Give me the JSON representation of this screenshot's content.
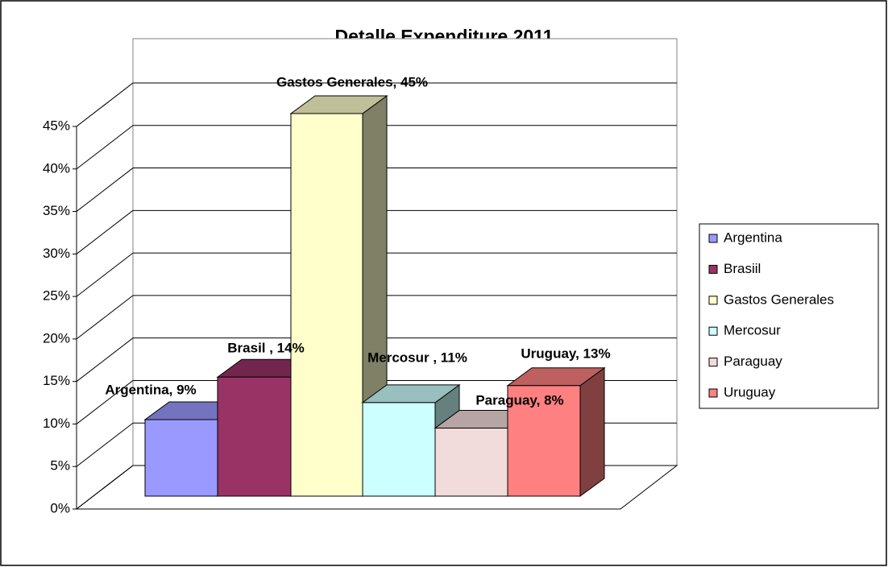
{
  "chart_data": {
    "type": "bar3d",
    "title": "Detalle Expenditure 2011",
    "series": [
      {
        "name": "Argentina",
        "color": "#9999ff",
        "values": [
          9
        ],
        "value_labels": [
          "Argentina, 9%"
        ]
      },
      {
        "name": "Brasiil",
        "color": "#993366",
        "values": [
          14
        ],
        "value_labels": [
          "Brasil , 14%"
        ]
      },
      {
        "name": "Gastos Generales",
        "color": "#ffffcc",
        "values": [
          45
        ],
        "value_labels": [
          "Gastos Generales, 45%"
        ]
      },
      {
        "name": "Mercosur",
        "color": "#ccffff",
        "values": [
          11
        ],
        "value_labels": [
          "Mercosur , 11%"
        ]
      },
      {
        "name": "Paraguay",
        "color": "#f2dcdb",
        "values": [
          8
        ],
        "value_labels": [
          "Paraguay, 8%"
        ]
      },
      {
        "name": "Uruguay",
        "color": "#ff8080",
        "values": [
          13
        ],
        "value_labels": [
          "Uruguay, 13%"
        ]
      }
    ],
    "ylim": [
      0,
      45
    ],
    "yticks": [
      {
        "value": 0,
        "label": "0%"
      },
      {
        "value": 5,
        "label": "5%"
      },
      {
        "value": 10,
        "label": "10%"
      },
      {
        "value": 15,
        "label": "15%"
      },
      {
        "value": 20,
        "label": "20%"
      },
      {
        "value": 25,
        "label": "25%"
      },
      {
        "value": 30,
        "label": "30%"
      },
      {
        "value": 35,
        "label": "35%"
      },
      {
        "value": 40,
        "label": "40%"
      },
      {
        "value": 45,
        "label": "45%"
      }
    ],
    "grid": true,
    "legend": "right"
  }
}
